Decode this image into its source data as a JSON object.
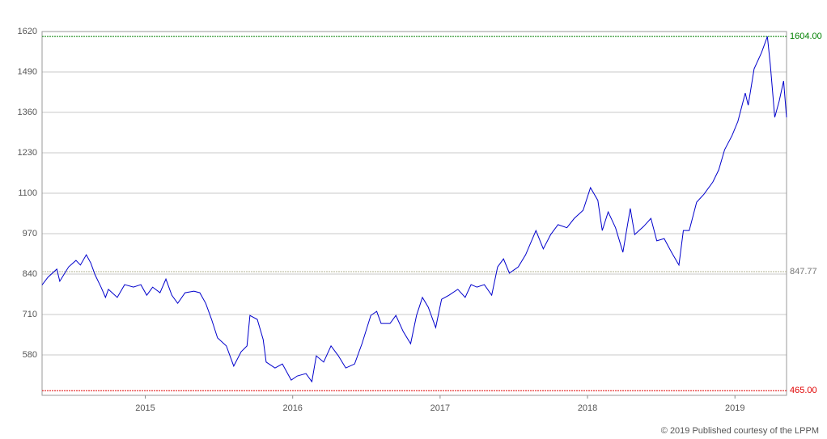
{
  "chart_data": {
    "type": "line",
    "color": "#0000cc",
    "grid": true,
    "xlim": [
      2014.3,
      2019.35
    ],
    "xticks": [
      2015,
      2016,
      2017,
      2018,
      2019
    ],
    "ylim": [
      450,
      1620
    ],
    "yticks": [
      580,
      710,
      840,
      970,
      1100,
      1230,
      1360,
      1490,
      1620
    ],
    "x": [
      2014.3,
      2014.34,
      2014.4,
      2014.42,
      2014.48,
      2014.53,
      2014.56,
      2014.6,
      2014.63,
      2014.66,
      2014.7,
      2014.73,
      2014.75,
      2014.81,
      2014.86,
      2014.92,
      2014.97,
      2015.01,
      2015.05,
      2015.1,
      2015.14,
      2015.18,
      2015.22,
      2015.27,
      2015.33,
      2015.37,
      2015.41,
      2015.45,
      2015.49,
      2015.55,
      2015.6,
      2015.65,
      2015.69,
      2015.71,
      2015.76,
      2015.8,
      2015.82,
      2015.88,
      2015.93,
      2015.99,
      2016.03,
      2016.09,
      2016.13,
      2016.16,
      2016.21,
      2016.26,
      2016.31,
      2016.36,
      2016.42,
      2016.47,
      2016.53,
      2016.57,
      2016.6,
      2016.66,
      2016.7,
      2016.75,
      2016.8,
      2016.84,
      2016.88,
      2016.92,
      2016.97,
      2017.01,
      2017.06,
      2017.12,
      2017.17,
      2017.21,
      2017.25,
      2017.3,
      2017.35,
      2017.39,
      2017.43,
      2017.47,
      2017.53,
      2017.58,
      2017.65,
      2017.7,
      2017.75,
      2017.8,
      2017.86,
      2017.91,
      2017.97,
      2018.02,
      2018.07,
      2018.1,
      2018.14,
      2018.19,
      2018.24,
      2018.29,
      2018.32,
      2018.38,
      2018.43,
      2018.47,
      2018.52,
      2018.57,
      2018.62,
      2018.65,
      2018.69,
      2018.74,
      2018.79,
      2018.85,
      2018.89,
      2018.93,
      2018.98,
      2019.02,
      2019.07,
      2019.09,
      2019.13,
      2019.18,
      2019.22,
      2019.24,
      2019.27,
      2019.3,
      2019.33,
      2019.35
    ],
    "values": [
      805,
      830,
      856,
      817,
      863,
      884,
      869,
      902,
      876,
      837,
      798,
      765,
      791,
      765,
      806,
      798,
      806,
      772,
      798,
      780,
      824,
      772,
      746,
      780,
      785,
      780,
      746,
      694,
      635,
      609,
      544,
      590,
      609,
      707,
      694,
      629,
      557,
      538,
      551,
      499,
      512,
      520,
      494,
      577,
      557,
      609,
      577,
      538,
      551,
      616,
      707,
      720,
      681,
      681,
      707,
      655,
      616,
      707,
      765,
      733,
      668,
      759,
      772,
      791,
      765,
      806,
      798,
      806,
      772,
      863,
      889,
      843,
      863,
      902,
      980,
      921,
      967,
      999,
      989,
      1019,
      1045,
      1118,
      1077,
      980,
      1040,
      989,
      910,
      1051,
      967,
      993,
      1019,
      947,
      954,
      910,
      869,
      980,
      980,
      1071,
      1097,
      1136,
      1175,
      1240,
      1285,
      1331,
      1422,
      1383,
      1500,
      1552,
      1604,
      1513,
      1344,
      1396,
      1461,
      1344
    ],
    "hlines": [
      {
        "value": 1604,
        "label": "1604.00",
        "color": "#008000"
      },
      {
        "value": 847.77,
        "label": "847.77",
        "color": "#b0b090"
      },
      {
        "value": 465,
        "label": "465.00",
        "color": "#e00000"
      }
    ],
    "source": "© 2019 Published courtesy of the LPPM"
  }
}
